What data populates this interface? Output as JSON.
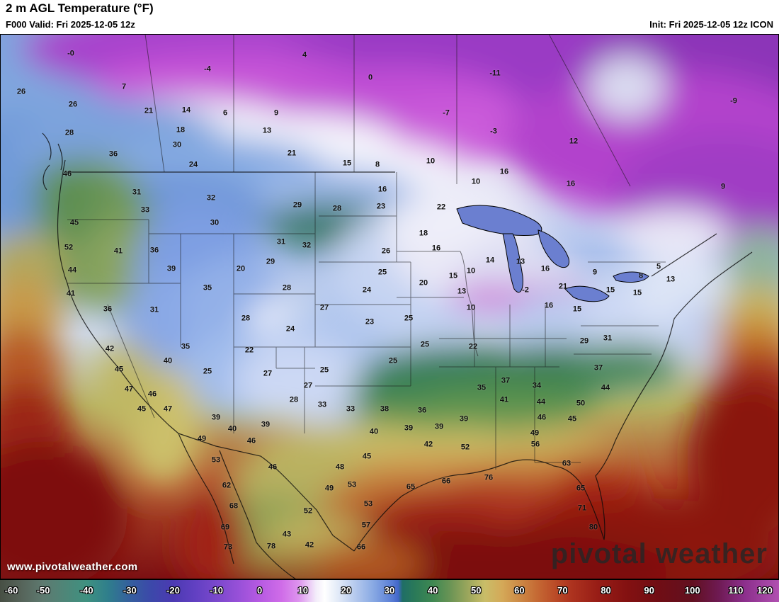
{
  "header": {
    "title": "2 m AGL Temperature (°F)",
    "valid": "F000 Valid: Fri 2025-12-05 12z",
    "init": "Init: Fri 2025-12-05 12z ICON"
  },
  "watermark": {
    "url": "www.pivotalweather.com",
    "logo": "pivotal weather"
  },
  "colorbar": {
    "unit": "°F",
    "min": -60,
    "max": 120,
    "ticks": [
      -60,
      -50,
      -40,
      -30,
      -20,
      -10,
      0,
      10,
      20,
      30,
      40,
      50,
      60,
      70,
      80,
      90,
      100,
      110,
      120
    ],
    "stops": [
      {
        "value": -60,
        "color": "#474f44"
      },
      {
        "value": -55,
        "color": "#56645a"
      },
      {
        "value": -50,
        "color": "#5e7a70"
      },
      {
        "value": -45,
        "color": "#4e8678"
      },
      {
        "value": -40,
        "color": "#3f9180"
      },
      {
        "value": -35,
        "color": "#2f7e8c"
      },
      {
        "value": -30,
        "color": "#355f9e"
      },
      {
        "value": -25,
        "color": "#3c48aa"
      },
      {
        "value": -20,
        "color": "#4c3ab2"
      },
      {
        "value": -15,
        "color": "#6140c2"
      },
      {
        "value": -10,
        "color": "#7a48cc"
      },
      {
        "value": -5,
        "color": "#9750d8"
      },
      {
        "value": 0,
        "color": "#b65ae2"
      },
      {
        "value": 5,
        "color": "#cf6ce8"
      },
      {
        "value": 9,
        "color": "#dd93ee"
      },
      {
        "value": 13,
        "color": "#f3ecfa"
      },
      {
        "value": 15,
        "color": "#ffffff"
      },
      {
        "value": 18,
        "color": "#e3ebf8"
      },
      {
        "value": 22,
        "color": "#b6caee"
      },
      {
        "value": 26,
        "color": "#8babe4"
      },
      {
        "value": 30,
        "color": "#6084d8"
      },
      {
        "value": 32,
        "color": "#4468ca"
      },
      {
        "value": 33,
        "color": "#1f6e66"
      },
      {
        "value": 36,
        "color": "#2b7a58"
      },
      {
        "value": 40,
        "color": "#3f8852"
      },
      {
        "value": 44,
        "color": "#6a9455"
      },
      {
        "value": 48,
        "color": "#9aa65c"
      },
      {
        "value": 52,
        "color": "#c9bd68"
      },
      {
        "value": 56,
        "color": "#d4a958"
      },
      {
        "value": 60,
        "color": "#cd8a46"
      },
      {
        "value": 64,
        "color": "#c56a34"
      },
      {
        "value": 68,
        "color": "#bb4d28"
      },
      {
        "value": 72,
        "color": "#ad331f"
      },
      {
        "value": 78,
        "color": "#981d16"
      },
      {
        "value": 85,
        "color": "#831111"
      },
      {
        "value": 92,
        "color": "#700d14"
      },
      {
        "value": 100,
        "color": "#621020"
      },
      {
        "value": 106,
        "color": "#6e1a52"
      },
      {
        "value": 112,
        "color": "#8c2f8c"
      },
      {
        "value": 120,
        "color": "#b050b0"
      }
    ]
  },
  "map": {
    "stations": [
      [
        100,
        76,
        "-0"
      ],
      [
        293,
        98,
        "-4"
      ],
      [
        430,
        78,
        "4"
      ],
      [
        523,
        110,
        "0"
      ],
      [
        699,
        104,
        "-11"
      ],
      [
        630,
        160,
        "-7"
      ],
      [
        697,
        186,
        "-3"
      ],
      [
        1036,
        143,
        "-9"
      ],
      [
        810,
        200,
        "12"
      ],
      [
        806,
        260,
        "16"
      ],
      [
        1021,
        264,
        "9"
      ],
      [
        30,
        130,
        "26"
      ],
      [
        175,
        123,
        "7"
      ],
      [
        103,
        148,
        "26"
      ],
      [
        210,
        157,
        "21"
      ],
      [
        263,
        156,
        "14"
      ],
      [
        318,
        160,
        "6"
      ],
      [
        390,
        160,
        "9"
      ],
      [
        98,
        188,
        "28"
      ],
      [
        255,
        184,
        "18"
      ],
      [
        377,
        185,
        "13"
      ],
      [
        250,
        205,
        "30"
      ],
      [
        412,
        217,
        "21"
      ],
      [
        160,
        218,
        "36"
      ],
      [
        273,
        233,
        "24"
      ],
      [
        490,
        231,
        "15"
      ],
      [
        533,
        233,
        "8"
      ],
      [
        608,
        228,
        "10"
      ],
      [
        672,
        257,
        "10"
      ],
      [
        712,
        243,
        "16"
      ],
      [
        540,
        268,
        "16"
      ],
      [
        95,
        246,
        "46"
      ],
      [
        623,
        293,
        "22"
      ],
      [
        193,
        272,
        "31"
      ],
      [
        205,
        297,
        "33"
      ],
      [
        298,
        280,
        "32"
      ],
      [
        303,
        315,
        "30"
      ],
      [
        420,
        290,
        "29"
      ],
      [
        476,
        295,
        "28"
      ],
      [
        538,
        292,
        "23"
      ],
      [
        598,
        330,
        "18"
      ],
      [
        616,
        351,
        "16"
      ],
      [
        545,
        355,
        "26"
      ],
      [
        397,
        342,
        "31"
      ],
      [
        433,
        347,
        "32"
      ],
      [
        105,
        315,
        "45"
      ],
      [
        97,
        350,
        "52"
      ],
      [
        167,
        355,
        "41"
      ],
      [
        218,
        354,
        "36"
      ],
      [
        102,
        382,
        "44"
      ],
      [
        242,
        380,
        "39"
      ],
      [
        340,
        380,
        "20"
      ],
      [
        382,
        370,
        "29"
      ],
      [
        692,
        368,
        "14"
      ],
      [
        735,
        370,
        "13"
      ],
      [
        770,
        380,
        "16"
      ],
      [
        840,
        385,
        "9"
      ],
      [
        905,
        390,
        "8"
      ],
      [
        930,
        377,
        "5"
      ],
      [
        947,
        395,
        "13"
      ],
      [
        100,
        415,
        "41"
      ],
      [
        293,
        407,
        "35"
      ],
      [
        405,
        407,
        "28"
      ],
      [
        518,
        410,
        "24"
      ],
      [
        540,
        385,
        "25"
      ],
      [
        598,
        400,
        "20"
      ],
      [
        640,
        390,
        "15"
      ],
      [
        652,
        412,
        "13"
      ],
      [
        665,
        383,
        "10"
      ],
      [
        742,
        410,
        "-2"
      ],
      [
        795,
        405,
        "21"
      ],
      [
        862,
        410,
        "15"
      ],
      [
        900,
        414,
        "15"
      ],
      [
        815,
        437,
        "15"
      ],
      [
        775,
        432,
        "16"
      ],
      [
        152,
        437,
        "36"
      ],
      [
        218,
        438,
        "31"
      ],
      [
        347,
        450,
        "28"
      ],
      [
        458,
        435,
        "27"
      ],
      [
        410,
        465,
        "24"
      ],
      [
        522,
        455,
        "23"
      ],
      [
        577,
        450,
        "25"
      ],
      [
        665,
        435,
        "10"
      ],
      [
        262,
        490,
        "35"
      ],
      [
        352,
        495,
        "22"
      ],
      [
        155,
        493,
        "42"
      ],
      [
        237,
        510,
        "40"
      ],
      [
        600,
        487,
        "25"
      ],
      [
        668,
        490,
        "22"
      ],
      [
        825,
        482,
        "29"
      ],
      [
        858,
        478,
        "31"
      ],
      [
        168,
        522,
        "45"
      ],
      [
        182,
        550,
        "47"
      ],
      [
        215,
        557,
        "46"
      ],
      [
        293,
        525,
        "25"
      ],
      [
        378,
        528,
        "27"
      ],
      [
        435,
        545,
        "27"
      ],
      [
        458,
        523,
        "25"
      ],
      [
        555,
        510,
        "25"
      ],
      [
        680,
        548,
        "35"
      ],
      [
        714,
        538,
        "37"
      ],
      [
        758,
        545,
        "34"
      ],
      [
        845,
        520,
        "37"
      ],
      [
        855,
        548,
        "44"
      ],
      [
        712,
        565,
        "41"
      ],
      [
        764,
        568,
        "44"
      ],
      [
        200,
        578,
        "45"
      ],
      [
        237,
        578,
        "47"
      ],
      [
        305,
        590,
        "39"
      ],
      [
        375,
        600,
        "39"
      ],
      [
        415,
        565,
        "28"
      ],
      [
        455,
        572,
        "33"
      ],
      [
        495,
        578,
        "33"
      ],
      [
        543,
        578,
        "38"
      ],
      [
        596,
        580,
        "36"
      ],
      [
        655,
        592,
        "39"
      ],
      [
        765,
        590,
        "46"
      ],
      [
        808,
        592,
        "45"
      ],
      [
        820,
        570,
        "50"
      ],
      [
        328,
        606,
        "40"
      ],
      [
        528,
        610,
        "40"
      ],
      [
        577,
        605,
        "39"
      ],
      [
        620,
        603,
        "39"
      ],
      [
        755,
        612,
        "49"
      ],
      [
        657,
        632,
        "52"
      ],
      [
        756,
        628,
        "56"
      ],
      [
        605,
        628,
        "42"
      ],
      [
        518,
        645,
        "45"
      ],
      [
        355,
        623,
        "46"
      ],
      [
        385,
        660,
        "46"
      ],
      [
        305,
        650,
        "53"
      ],
      [
        285,
        620,
        "49"
      ],
      [
        800,
        655,
        "63"
      ],
      [
        480,
        660,
        "48"
      ],
      [
        320,
        686,
        "62"
      ],
      [
        465,
        690,
        "49"
      ],
      [
        497,
        685,
        "53"
      ],
      [
        520,
        712,
        "53"
      ],
      [
        580,
        688,
        "65"
      ],
      [
        630,
        680,
        "66"
      ],
      [
        690,
        675,
        "76"
      ],
      [
        820,
        690,
        "65"
      ],
      [
        822,
        718,
        "71"
      ],
      [
        330,
        715,
        "68"
      ],
      [
        435,
        722,
        "52"
      ],
      [
        318,
        745,
        "69"
      ],
      [
        322,
        773,
        "73"
      ],
      [
        383,
        772,
        "78"
      ],
      [
        405,
        755,
        "43"
      ],
      [
        437,
        770,
        "42"
      ],
      [
        510,
        773,
        "66"
      ],
      [
        517,
        742,
        "57"
      ],
      [
        838,
        745,
        "80"
      ]
    ]
  }
}
